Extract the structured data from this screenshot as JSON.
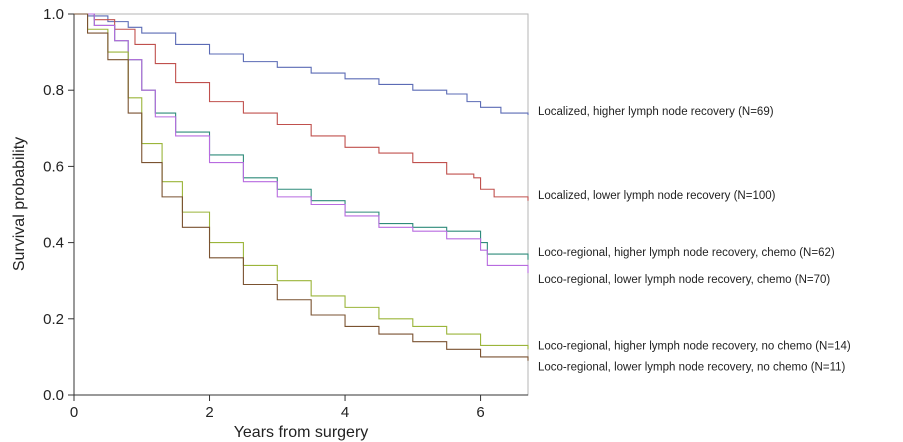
{
  "chart_data": {
    "type": "line",
    "xlabel": "Years from surgery",
    "ylabel": "Survival probability",
    "xlim": [
      0,
      6.7
    ],
    "ylim": [
      0,
      1.0
    ],
    "xticks": [
      0,
      2,
      4,
      6
    ],
    "xtick_labels": [
      "0",
      "2",
      "4",
      "6"
    ],
    "yticks": [
      0.0,
      0.2,
      0.4,
      0.6,
      0.8,
      1.0
    ],
    "ytick_labels": [
      "0.0",
      "0.2",
      "0.4",
      "0.6",
      "0.8",
      "1.0"
    ],
    "grid": false,
    "legend": "right",
    "series": [
      {
        "name": "Localized, higher lymph node recovery (N=69)",
        "color": "#5b6bb5",
        "x": [
          0,
          0.2,
          0.5,
          0.8,
          1.0,
          1.5,
          2.0,
          2.5,
          3.0,
          3.5,
          4.0,
          4.5,
          5.0,
          5.5,
          5.8,
          6.0,
          6.3,
          6.7
        ],
        "y": [
          1.0,
          0.995,
          0.98,
          0.965,
          0.95,
          0.92,
          0.895,
          0.875,
          0.86,
          0.845,
          0.83,
          0.815,
          0.8,
          0.79,
          0.77,
          0.755,
          0.74,
          0.735
        ]
      },
      {
        "name": "Localized, lower lymph node recovery (N=100)",
        "color": "#c0504d",
        "x": [
          0,
          0.3,
          0.6,
          0.9,
          1.2,
          1.5,
          2.0,
          2.5,
          3.0,
          3.5,
          4.0,
          4.5,
          5.0,
          5.5,
          5.9,
          6.0,
          6.2,
          6.7
        ],
        "y": [
          1.0,
          0.985,
          0.96,
          0.92,
          0.87,
          0.82,
          0.77,
          0.74,
          0.71,
          0.68,
          0.65,
          0.635,
          0.61,
          0.58,
          0.57,
          0.54,
          0.52,
          0.51
        ]
      },
      {
        "name": "Loco-regional, higher lymph node recovery, chemo (N=62)",
        "color": "#2e8b7a",
        "x": [
          0,
          0.3,
          0.6,
          0.8,
          1.0,
          1.2,
          1.5,
          2.0,
          2.5,
          3.0,
          3.5,
          4.0,
          4.5,
          5.0,
          5.5,
          6.0,
          6.1,
          6.7
        ],
        "y": [
          1.0,
          0.97,
          0.93,
          0.88,
          0.8,
          0.74,
          0.69,
          0.63,
          0.57,
          0.54,
          0.51,
          0.48,
          0.45,
          0.44,
          0.43,
          0.4,
          0.37,
          0.355
        ]
      },
      {
        "name": "Loco-regional, lower lymph node recovery, chemo (N=70)",
        "color": "#b86be0",
        "x": [
          0,
          0.3,
          0.6,
          0.8,
          1.0,
          1.2,
          1.5,
          2.0,
          2.5,
          3.0,
          3.5,
          4.0,
          4.5,
          5.0,
          5.5,
          6.0,
          6.1,
          6.7
        ],
        "y": [
          1.0,
          0.97,
          0.93,
          0.88,
          0.8,
          0.73,
          0.68,
          0.61,
          0.56,
          0.52,
          0.5,
          0.47,
          0.44,
          0.43,
          0.41,
          0.38,
          0.34,
          0.32
        ]
      },
      {
        "name": "Loco-regional, higher lymph node recovery, no chemo (N=14)",
        "color": "#9bb53a",
        "x": [
          0,
          0.2,
          0.5,
          0.8,
          1.0,
          1.3,
          1.6,
          2.0,
          2.5,
          3.0,
          3.5,
          4.0,
          4.5,
          5.0,
          5.5,
          6.0,
          6.7
        ],
        "y": [
          1.0,
          0.96,
          0.9,
          0.78,
          0.66,
          0.56,
          0.48,
          0.4,
          0.34,
          0.3,
          0.26,
          0.23,
          0.2,
          0.18,
          0.16,
          0.13,
          0.12
        ]
      },
      {
        "name": "Loco-regional, lower lymph node recovery, no chemo (N=11)",
        "color": "#7a5230",
        "x": [
          0,
          0.2,
          0.5,
          0.8,
          1.0,
          1.3,
          1.6,
          2.0,
          2.5,
          3.0,
          3.5,
          4.0,
          4.5,
          5.0,
          5.5,
          6.0,
          6.7
        ],
        "y": [
          1.0,
          0.95,
          0.88,
          0.74,
          0.61,
          0.52,
          0.44,
          0.36,
          0.29,
          0.25,
          0.21,
          0.18,
          0.16,
          0.14,
          0.12,
          0.1,
          0.09
        ]
      }
    ],
    "label_anchor_y": [
      0.745,
      0.525,
      0.375,
      0.305,
      0.13,
      0.075
    ]
  }
}
